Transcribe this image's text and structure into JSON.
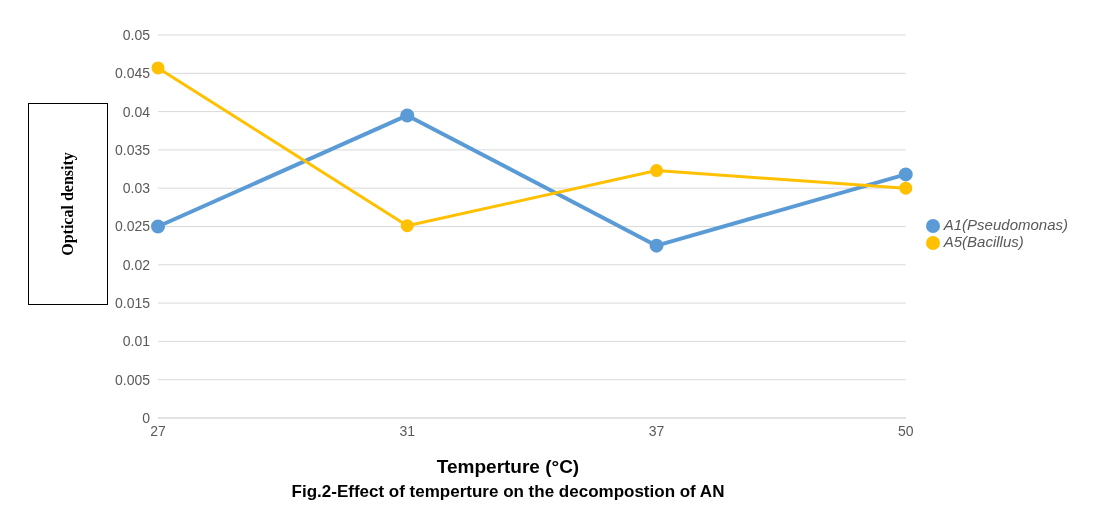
{
  "chart_data": {
    "type": "line",
    "title": "Fig.2-Effect of temperture on the decompostion of AN",
    "xlabel": "Temperture (°C)",
    "ylabel": "Optical density",
    "categories": [
      "27",
      "31",
      "37",
      "50"
    ],
    "series": [
      {
        "name": "A1(Pseudomonas)",
        "color": "#5b9bd5",
        "values": [
          0.025,
          0.0395,
          0.0225,
          0.0318
        ]
      },
      {
        "name": "A5(Bacillus)",
        "color": "#ffc000",
        "values": [
          0.0457,
          0.0251,
          0.0323,
          0.03
        ]
      }
    ],
    "ylim": [
      0,
      0.05
    ],
    "yticks": [
      0,
      0.005,
      0.01,
      0.015,
      0.02,
      0.025,
      0.03,
      0.035,
      0.04,
      0.045,
      0.05
    ],
    "grid": "y",
    "legend": "right",
    "marker": "circle",
    "line_style": "solid"
  }
}
